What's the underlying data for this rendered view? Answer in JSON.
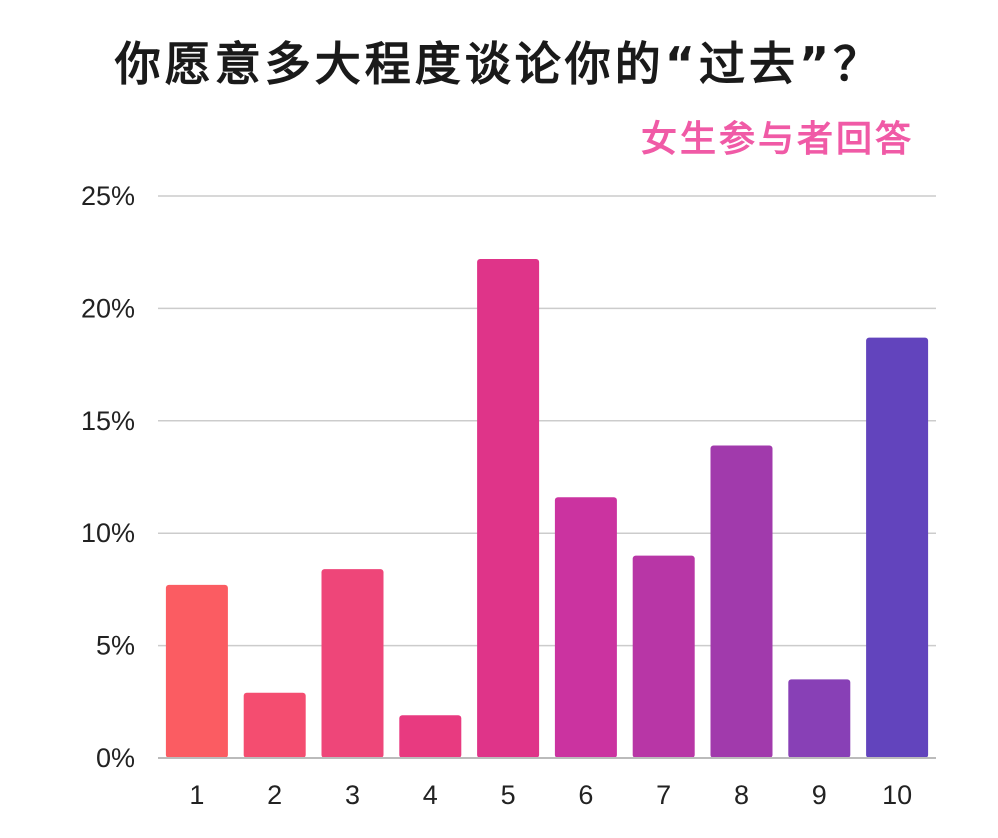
{
  "title": "你愿意多大程度谈论你的“过去”？",
  "subtitle": "女生参与者回答",
  "chart_data": {
    "type": "bar",
    "title": "你愿意多大程度谈论你的“过去”？",
    "subtitle": "女生参与者回答",
    "xlabel": "",
    "ylabel": "",
    "categories": [
      "1",
      "2",
      "3",
      "4",
      "5",
      "6",
      "7",
      "8",
      "9",
      "10"
    ],
    "values": [
      7.7,
      2.9,
      8.4,
      1.9,
      22.2,
      11.6,
      9.0,
      13.9,
      3.5,
      18.7
    ],
    "unit": "%",
    "ylim": [
      0,
      25
    ],
    "yticks": [
      0,
      5,
      10,
      15,
      20,
      25
    ],
    "ytick_labels": [
      "0%",
      "5%",
      "10%",
      "15%",
      "20%",
      "25%"
    ],
    "grid": true,
    "legend": "none",
    "colors": [
      "#fb5c62",
      "#f44d70",
      "#ee4679",
      "#e83a80",
      "#df3489",
      "#cb33a0",
      "#b836a6",
      "#a13aac",
      "#8840b6",
      "#6244bd"
    ]
  }
}
